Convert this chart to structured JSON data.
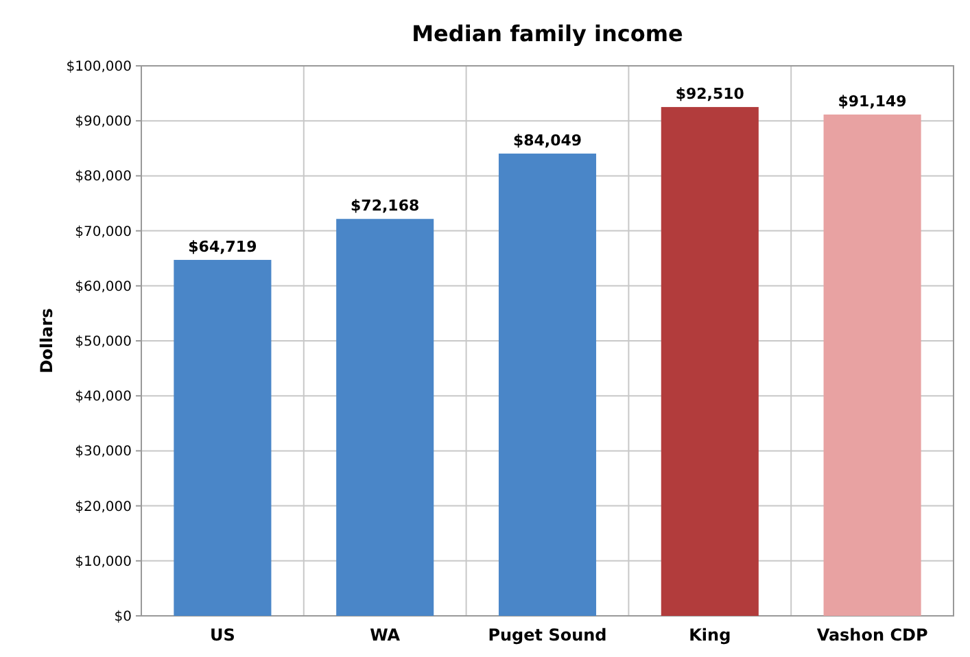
{
  "chart_data": {
    "type": "bar",
    "title": "Median family income",
    "ylabel": "Dollars",
    "categories": [
      "US",
      "WA",
      "Puget Sound",
      "King",
      "Vashon CDP"
    ],
    "values": [
      64719,
      72168,
      84049,
      92510,
      91149
    ],
    "colors": [
      "#4a86c8",
      "#4a86c8",
      "#4a86c8",
      "#b23c3c",
      "#e8a2a2"
    ],
    "value_labels": [
      "$64,719",
      "$72,168",
      "$84,049",
      "$92,510",
      "$91,149"
    ],
    "ylim": [
      0,
      100000
    ],
    "yticks": [
      {
        "value": 0,
        "label": "$0"
      },
      {
        "value": 10000,
        "label": "$10,000"
      },
      {
        "value": 20000,
        "label": "$20,000"
      },
      {
        "value": 30000,
        "label": "$30,000"
      },
      {
        "value": 40000,
        "label": "$40,000"
      },
      {
        "value": 50000,
        "label": "$50,000"
      },
      {
        "value": 60000,
        "label": "$60,000"
      },
      {
        "value": 70000,
        "label": "$70,000"
      },
      {
        "value": 80000,
        "label": "$80,000"
      },
      {
        "value": 90000,
        "label": "$90,000"
      },
      {
        "value": 100000,
        "label": "$100,000"
      }
    ],
    "grid": true
  }
}
